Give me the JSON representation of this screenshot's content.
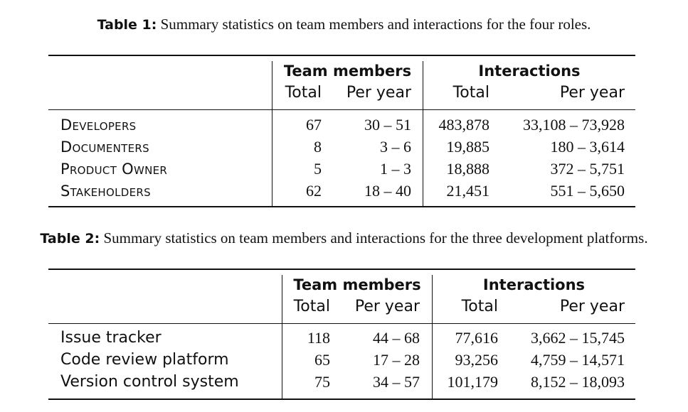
{
  "table1": {
    "caption_label": "Table 1:",
    "caption_text": " Summary statistics on team members and interactions for the four roles.",
    "group_members": "Team members",
    "group_interactions": "Interactions",
    "col_total": "Total",
    "col_per_year": "Per year",
    "rows": [
      {
        "name": "Developers",
        "m_total": "67",
        "m_per": "30 – 51",
        "i_total": "483,878",
        "i_per": "33,108 – 73,928"
      },
      {
        "name": "Documenters",
        "m_total": "8",
        "m_per": "3 – 6",
        "i_total": "19,885",
        "i_per": "180 – 3,614"
      },
      {
        "name": "Product Owner",
        "m_total": "5",
        "m_per": "1 – 3",
        "i_total": "18,888",
        "i_per": "372 – 5,751"
      },
      {
        "name": "Stakeholders",
        "m_total": "62",
        "m_per": "18 – 40",
        "i_total": "21,451",
        "i_per": "551 – 5,650"
      }
    ]
  },
  "table2": {
    "caption_label": "Table 2:",
    "caption_text": " Summary statistics on team members and interactions for the three development platforms.",
    "group_members": "Team members",
    "group_interactions": "Interactions",
    "col_total": "Total",
    "col_per_year": "Per year",
    "rows": [
      {
        "name": "Issue tracker",
        "m_total": "118",
        "m_per": "44 – 68",
        "i_total": "77,616",
        "i_per": "3,662 – 15,745"
      },
      {
        "name": "Code review platform",
        "m_total": "65",
        "m_per": "17 – 28",
        "i_total": "93,256",
        "i_per": "4,759 – 14,571"
      },
      {
        "name": "Version control system",
        "m_total": "75",
        "m_per": "34 – 57",
        "i_total": "101,179",
        "i_per": "8,152 – 18,093"
      }
    ]
  }
}
